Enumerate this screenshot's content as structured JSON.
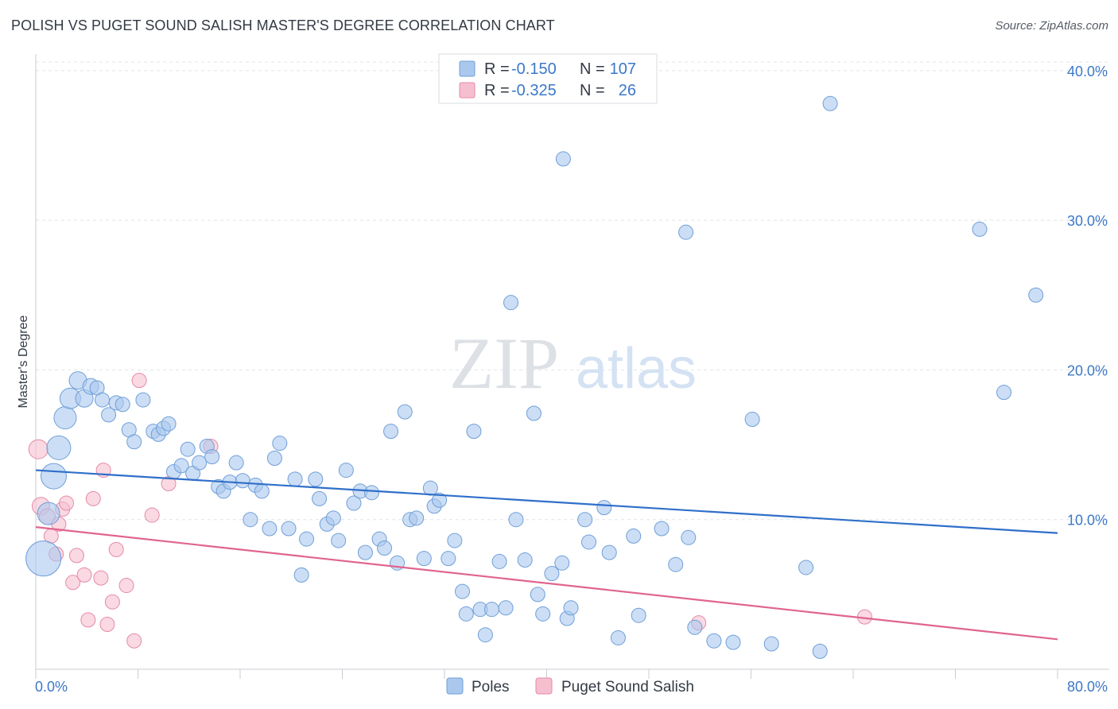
{
  "title": "POLISH VS PUGET SOUND SALISH MASTER'S DEGREE CORRELATION CHART",
  "source": "Source: ZipAtlas.com",
  "watermark": {
    "zip": "ZIP",
    "atlas": "atlas"
  },
  "colors": {
    "poles_fill": "#aac8ee",
    "poles_stroke": "#6f9fd8",
    "poles_line": "#2f6fc9",
    "salish_fill": "#f6bfd0",
    "salish_stroke": "#e48aa8",
    "salish_line": "#e0648f",
    "tick_blue": "#3c78c8"
  },
  "legend": {
    "rows": [
      {
        "r_label": "R =",
        "r_value": "-0.150",
        "n_label": "N =",
        "n_value": "107"
      },
      {
        "r_label": "R =",
        "r_value": "-0.325",
        "n_label": "N =",
        "n_value": "26"
      }
    ]
  },
  "bottom_legend": [
    "Poles",
    "Puget Sound Salish"
  ],
  "chart_data": {
    "type": "scatter",
    "title": "POLISH VS PUGET SOUND SALISH MASTER'S DEGREE CORRELATION CHART",
    "xlabel": "",
    "ylabel": "Master's Degree",
    "xlim": [
      0,
      80
    ],
    "ylim": [
      0,
      41
    ],
    "x_tick_labels": [
      "0.0%",
      "80.0%"
    ],
    "y_ticks": [
      10,
      20,
      30,
      40
    ],
    "y_tick_labels": [
      "10.0%",
      "20.0%",
      "30.0%",
      "40.0%"
    ],
    "grid": "horizontal dashed",
    "legend_position": "top-center",
    "series": [
      {
        "name": "Poles",
        "trend": {
          "x": [
            0,
            80
          ],
          "y": [
            13.3,
            9.1
          ]
        },
        "points": [
          [
            0.6,
            7.4,
            22
          ],
          [
            1.4,
            12.9,
            16
          ],
          [
            1.8,
            14.8,
            15
          ],
          [
            2.3,
            16.8,
            14
          ],
          [
            1.0,
            10.4,
            14
          ],
          [
            2.7,
            18.1,
            13
          ],
          [
            3.3,
            19.3,
            11
          ],
          [
            3.8,
            18.1,
            11
          ],
          [
            4.3,
            18.9,
            10
          ],
          [
            4.8,
            18.8,
            9
          ],
          [
            5.2,
            18.0,
            9
          ],
          [
            5.7,
            17.0,
            9
          ],
          [
            6.3,
            17.8,
            9
          ],
          [
            6.8,
            17.7,
            9
          ],
          [
            7.3,
            16.0,
            9
          ],
          [
            7.7,
            15.2,
            9
          ],
          [
            8.4,
            18.0,
            9
          ],
          [
            9.2,
            15.9,
            9
          ],
          [
            9.6,
            15.7,
            9
          ],
          [
            10.0,
            16.1,
            9
          ],
          [
            10.4,
            16.4,
            9
          ],
          [
            10.8,
            13.2,
            9
          ],
          [
            11.4,
            13.6,
            9
          ],
          [
            11.9,
            14.7,
            9
          ],
          [
            12.3,
            13.1,
            9
          ],
          [
            12.8,
            13.8,
            9
          ],
          [
            13.4,
            14.9,
            9
          ],
          [
            13.8,
            14.2,
            9
          ],
          [
            14.3,
            12.2,
            9
          ],
          [
            14.7,
            11.9,
            9
          ],
          [
            15.2,
            12.5,
            9
          ],
          [
            15.7,
            13.8,
            9
          ],
          [
            16.2,
            12.6,
            9
          ],
          [
            16.8,
            10.0,
            9
          ],
          [
            17.2,
            12.3,
            9
          ],
          [
            17.7,
            11.9,
            9
          ],
          [
            18.3,
            9.4,
            9
          ],
          [
            18.7,
            14.1,
            9
          ],
          [
            19.1,
            15.1,
            9
          ],
          [
            19.8,
            9.4,
            9
          ],
          [
            20.3,
            12.7,
            9
          ],
          [
            20.8,
            6.3,
            9
          ],
          [
            21.2,
            8.7,
            9
          ],
          [
            21.9,
            12.7,
            9
          ],
          [
            22.2,
            11.4,
            9
          ],
          [
            22.8,
            9.7,
            9
          ],
          [
            23.3,
            10.1,
            9
          ],
          [
            23.7,
            8.6,
            9
          ],
          [
            24.3,
            13.3,
            9
          ],
          [
            24.9,
            11.1,
            9
          ],
          [
            25.4,
            11.9,
            9
          ],
          [
            25.8,
            7.8,
            9
          ],
          [
            26.3,
            11.8,
            9
          ],
          [
            26.9,
            8.7,
            9
          ],
          [
            27.3,
            8.1,
            9
          ],
          [
            27.8,
            15.9,
            9
          ],
          [
            28.3,
            7.1,
            9
          ],
          [
            28.9,
            17.2,
            9
          ],
          [
            29.3,
            10.0,
            9
          ],
          [
            29.8,
            10.1,
            9
          ],
          [
            30.4,
            7.4,
            9
          ],
          [
            30.9,
            12.1,
            9
          ],
          [
            31.2,
            10.9,
            9
          ],
          [
            31.6,
            11.3,
            9
          ],
          [
            32.3,
            7.4,
            9
          ],
          [
            32.8,
            8.6,
            9
          ],
          [
            33.4,
            5.2,
            9
          ],
          [
            33.7,
            3.7,
            9
          ],
          [
            34.3,
            15.9,
            9
          ],
          [
            34.8,
            4.0,
            9
          ],
          [
            35.2,
            2.3,
            9
          ],
          [
            35.7,
            4.0,
            9
          ],
          [
            36.3,
            7.2,
            9
          ],
          [
            36.8,
            4.1,
            9
          ],
          [
            37.2,
            24.5,
            9
          ],
          [
            37.6,
            10.0,
            9
          ],
          [
            38.3,
            7.3,
            9
          ],
          [
            39.0,
            17.1,
            9
          ],
          [
            39.3,
            5.0,
            9
          ],
          [
            39.7,
            3.7,
            9
          ],
          [
            40.4,
            6.4,
            9
          ],
          [
            41.2,
            7.1,
            9
          ],
          [
            41.6,
            3.4,
            9
          ],
          [
            41.9,
            4.1,
            9
          ],
          [
            43.0,
            10.0,
            9
          ],
          [
            43.3,
            8.5,
            9
          ],
          [
            44.5,
            10.8,
            9
          ],
          [
            44.9,
            7.8,
            9
          ],
          [
            45.6,
            2.1,
            9
          ],
          [
            46.8,
            8.9,
            9
          ],
          [
            47.2,
            3.6,
            9
          ],
          [
            49.0,
            9.4,
            9
          ],
          [
            50.1,
            7.0,
            9
          ],
          [
            50.9,
            29.2,
            9
          ],
          [
            51.1,
            8.8,
            9
          ],
          [
            51.6,
            2.8,
            9
          ],
          [
            53.1,
            1.9,
            9
          ],
          [
            54.6,
            1.8,
            9
          ],
          [
            56.1,
            16.7,
            9
          ],
          [
            57.6,
            1.7,
            9
          ],
          [
            60.3,
            6.8,
            9
          ],
          [
            61.4,
            1.2,
            9
          ],
          [
            41.3,
            34.1,
            9
          ],
          [
            62.2,
            37.8,
            9
          ],
          [
            73.9,
            29.4,
            9
          ],
          [
            75.8,
            18.5,
            9
          ],
          [
            78.3,
            25.0,
            9
          ]
        ]
      },
      {
        "name": "Puget Sound Salish",
        "trend": {
          "x": [
            0,
            80
          ],
          "y": [
            9.5,
            2.0
          ]
        },
        "points": [
          [
            0.2,
            14.7,
            12
          ],
          [
            0.4,
            10.9,
            11
          ],
          [
            0.9,
            10.2,
            10
          ],
          [
            1.2,
            8.9,
            9
          ],
          [
            1.6,
            7.7,
            9
          ],
          [
            1.8,
            9.7,
            9
          ],
          [
            2.1,
            10.7,
            9
          ],
          [
            2.4,
            11.1,
            9
          ],
          [
            2.9,
            5.8,
            9
          ],
          [
            3.2,
            7.6,
            9
          ],
          [
            3.8,
            6.3,
            9
          ],
          [
            4.1,
            3.3,
            9
          ],
          [
            4.5,
            11.4,
            9
          ],
          [
            5.1,
            6.1,
            9
          ],
          [
            5.3,
            13.3,
            9
          ],
          [
            5.6,
            3.0,
            9
          ],
          [
            6.0,
            4.5,
            9
          ],
          [
            6.3,
            8.0,
            9
          ],
          [
            7.1,
            5.6,
            9
          ],
          [
            7.7,
            1.9,
            9
          ],
          [
            8.1,
            19.3,
            9
          ],
          [
            9.1,
            10.3,
            9
          ],
          [
            10.4,
            12.4,
            9
          ],
          [
            13.7,
            14.9,
            9
          ],
          [
            51.9,
            3.1,
            9
          ],
          [
            64.9,
            3.5,
            9
          ]
        ]
      }
    ]
  }
}
